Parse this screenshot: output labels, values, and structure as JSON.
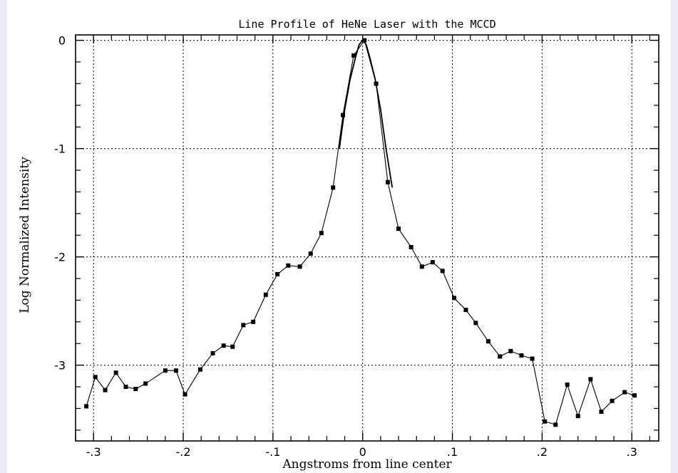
{
  "chart_data": {
    "type": "line",
    "title": "Line Profile of HeNe Laser with the MCCD",
    "xlabel": "Angstroms from line center",
    "ylabel": "Log Normalized Intensity",
    "xlim": [
      -0.32,
      0.33
    ],
    "ylim": [
      -3.7,
      0.05
    ],
    "grid": true,
    "x_ticks": [
      -0.3,
      -0.2,
      -0.1,
      0,
      0.1,
      0.2,
      0.3
    ],
    "x_tick_labels": [
      "-.3",
      "-.2",
      "-.1",
      "0",
      ".1",
      ".2",
      ".3"
    ],
    "y_ticks": [
      0,
      -1,
      -2,
      -3
    ],
    "y_tick_labels": [
      "0",
      "-1",
      "-2",
      "-3"
    ],
    "series": [
      {
        "style": "line-with-square-markers",
        "points": [
          [
            -0.308,
            -3.38
          ],
          [
            -0.298,
            -3.11
          ],
          [
            -0.287,
            -3.23
          ],
          [
            -0.275,
            -3.07
          ],
          [
            -0.264,
            -3.2
          ],
          [
            -0.253,
            -3.22
          ],
          [
            -0.242,
            -3.17
          ],
          [
            -0.22,
            -3.05
          ],
          [
            -0.208,
            -3.05
          ],
          [
            -0.198,
            -3.27
          ],
          [
            -0.181,
            -3.04
          ],
          [
            -0.167,
            -2.89
          ],
          [
            -0.155,
            -2.82
          ],
          [
            -0.145,
            -2.83
          ],
          [
            -0.133,
            -2.63
          ],
          [
            -0.122,
            -2.6
          ],
          [
            -0.108,
            -2.35
          ],
          [
            -0.095,
            -2.16
          ],
          [
            -0.083,
            -2.08
          ],
          [
            -0.07,
            -2.09
          ],
          [
            -0.058,
            -1.97
          ],
          [
            -0.046,
            -1.78
          ],
          [
            -0.033,
            -1.36
          ],
          [
            -0.022,
            -0.69
          ],
          [
            -0.01,
            -0.14
          ],
          [
            0.002,
            0.0
          ],
          [
            0.015,
            -0.4
          ],
          [
            0.028,
            -1.31
          ],
          [
            0.04,
            -1.74
          ],
          [
            0.054,
            -1.91
          ],
          [
            0.066,
            -2.09
          ],
          [
            0.078,
            -2.05
          ],
          [
            0.089,
            -2.13
          ],
          [
            0.102,
            -2.38
          ],
          [
            0.115,
            -2.49
          ],
          [
            0.126,
            -2.61
          ],
          [
            0.14,
            -2.78
          ],
          [
            0.153,
            -2.92
          ],
          [
            0.165,
            -2.87
          ],
          [
            0.177,
            -2.91
          ],
          [
            0.189,
            -2.94
          ],
          [
            0.203,
            -3.52
          ],
          [
            0.215,
            -3.55
          ],
          [
            0.228,
            -3.18
          ],
          [
            0.24,
            -3.47
          ],
          [
            0.254,
            -3.13
          ],
          [
            0.266,
            -3.43
          ],
          [
            0.278,
            -3.33
          ],
          [
            0.292,
            -3.25
          ],
          [
            0.303,
            -3.28
          ]
        ]
      },
      {
        "style": "fit-line",
        "points": [
          [
            -0.026,
            -1.0
          ],
          [
            -0.02,
            -0.64
          ],
          [
            -0.014,
            -0.36
          ],
          [
            -0.008,
            -0.16
          ],
          [
            -0.004,
            -0.04
          ],
          [
            0.0,
            0.0
          ],
          [
            0.004,
            -0.04
          ],
          [
            0.008,
            -0.16
          ],
          [
            0.014,
            -0.36
          ],
          [
            0.02,
            -0.64
          ],
          [
            0.026,
            -1.0
          ],
          [
            0.033,
            -1.36
          ]
        ]
      }
    ]
  }
}
